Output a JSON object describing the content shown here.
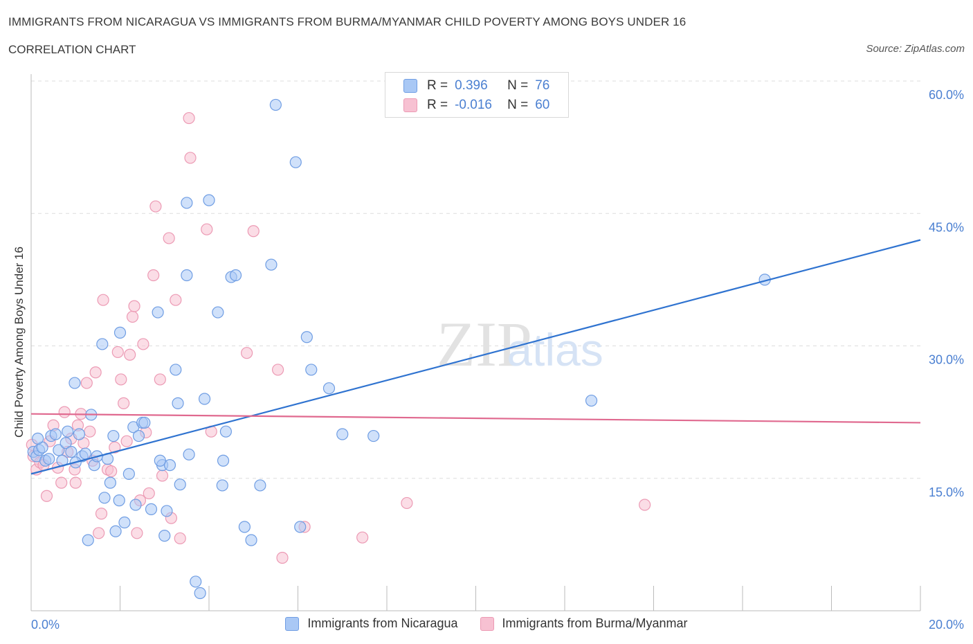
{
  "header": {
    "title": "IMMIGRANTS FROM NICARAGUA VS IMMIGRANTS FROM BURMA/MYANMAR CHILD POVERTY AMONG BOYS UNDER 16",
    "subtitle": "CORRELATION CHART",
    "source": "Source: ZipAtlas.com"
  },
  "watermark": {
    "zip": "ZIP",
    "atlas": "atlas"
  },
  "legend": {
    "r_label": "R =",
    "n_label": "N =",
    "rows": [
      {
        "r": "0.396",
        "n": "76"
      },
      {
        "r": "-0.016",
        "n": "60"
      }
    ]
  },
  "colors": {
    "blue_fill": "#a9c8f5",
    "blue_stroke": "#6f9de3",
    "blue_line": "#2f73d0",
    "pink_fill": "#f7c1d2",
    "pink_stroke": "#ec9ab4",
    "pink_line": "#e0698f",
    "axis_text": "#4a7fd1",
    "grid": "#dddddd"
  },
  "chart_data": {
    "type": "scatter",
    "title": "IMMIGRANTS FROM NICARAGUA VS IMMIGRANTS FROM BURMA/MYANMAR CHILD POVERTY AMONG BOYS UNDER 16",
    "ylabel": "Child Poverty Among Boys Under 16",
    "xlim": [
      0,
      20
    ],
    "ylim": [
      0,
      60
    ],
    "x_tick_labels": [
      "0.0%",
      "20.0%"
    ],
    "y_ticks": [
      15,
      30,
      45,
      60
    ],
    "y_tick_labels": [
      "15.0%",
      "30.0%",
      "45.0%",
      "60.0%"
    ],
    "grid": true,
    "legend_position": "bottom",
    "series": [
      {
        "name": "Immigrants from Nicaragua",
        "r": 0.396,
        "n": 76,
        "trend": {
          "x": [
            0,
            20
          ],
          "y": [
            15.5,
            42.0
          ]
        },
        "points": [
          [
            0.05,
            18.0
          ],
          [
            0.12,
            17.5
          ],
          [
            0.18,
            18.2
          ],
          [
            0.25,
            18.5
          ],
          [
            0.32,
            17.0
          ],
          [
            0.4,
            17.2
          ],
          [
            0.45,
            19.8
          ],
          [
            0.55,
            20.0
          ],
          [
            0.62,
            18.2
          ],
          [
            0.7,
            17.0
          ],
          [
            0.78,
            19.0
          ],
          [
            0.82,
            20.3
          ],
          [
            0.9,
            18.0
          ],
          [
            0.98,
            25.8
          ],
          [
            1.08,
            20.0
          ],
          [
            1.15,
            17.5
          ],
          [
            1.22,
            17.8
          ],
          [
            1.28,
            8.0
          ],
          [
            1.35,
            22.2
          ],
          [
            1.42,
            16.5
          ],
          [
            1.48,
            17.5
          ],
          [
            1.6,
            30.2
          ],
          [
            1.65,
            12.8
          ],
          [
            1.72,
            17.2
          ],
          [
            1.78,
            14.5
          ],
          [
            1.85,
            19.8
          ],
          [
            1.9,
            9.0
          ],
          [
            1.98,
            12.5
          ],
          [
            2.0,
            31.5
          ],
          [
            2.1,
            10.0
          ],
          [
            2.2,
            15.5
          ],
          [
            2.3,
            20.8
          ],
          [
            2.35,
            12.0
          ],
          [
            2.42,
            19.8
          ],
          [
            2.5,
            21.3
          ],
          [
            2.55,
            21.3
          ],
          [
            2.7,
            11.5
          ],
          [
            2.85,
            33.8
          ],
          [
            2.95,
            16.5
          ],
          [
            3.0,
            8.5
          ],
          [
            3.05,
            11.3
          ],
          [
            3.12,
            16.5
          ],
          [
            3.25,
            27.3
          ],
          [
            3.3,
            23.5
          ],
          [
            3.35,
            14.3
          ],
          [
            3.5,
            38.0
          ],
          [
            3.5,
            46.2
          ],
          [
            3.55,
            17.7
          ],
          [
            3.7,
            3.3
          ],
          [
            3.8,
            2.0
          ],
          [
            3.9,
            24.0
          ],
          [
            4.0,
            46.5
          ],
          [
            4.2,
            33.8
          ],
          [
            4.3,
            14.2
          ],
          [
            4.32,
            17.0
          ],
          [
            4.38,
            20.3
          ],
          [
            4.5,
            37.8
          ],
          [
            4.6,
            38.0
          ],
          [
            4.8,
            9.5
          ],
          [
            4.95,
            8.0
          ],
          [
            5.15,
            14.2
          ],
          [
            5.4,
            39.2
          ],
          [
            5.5,
            57.3
          ],
          [
            5.95,
            50.8
          ],
          [
            6.05,
            9.5
          ],
          [
            6.2,
            31.0
          ],
          [
            6.3,
            27.3
          ],
          [
            6.7,
            25.2
          ],
          [
            7.0,
            20.0
          ],
          [
            7.7,
            19.8
          ],
          [
            8.4,
            58.8
          ],
          [
            12.6,
            23.8
          ],
          [
            16.5,
            37.5
          ],
          [
            0.15,
            19.5
          ],
          [
            2.9,
            17.0
          ],
          [
            1.0,
            16.8
          ]
        ]
      },
      {
        "name": "Immigrants from Burma/Myanmar",
        "r": -0.016,
        "n": 60,
        "trend": {
          "x": [
            0,
            20
          ],
          "y": [
            22.3,
            21.3
          ]
        },
        "points": [
          [
            0.05,
            17.5
          ],
          [
            0.12,
            16.0
          ],
          [
            0.2,
            16.8
          ],
          [
            0.28,
            16.5
          ],
          [
            0.35,
            13.0
          ],
          [
            0.42,
            19.2
          ],
          [
            0.5,
            21.0
          ],
          [
            0.6,
            16.2
          ],
          [
            0.68,
            14.5
          ],
          [
            0.75,
            22.5
          ],
          [
            0.82,
            18.0
          ],
          [
            0.9,
            19.5
          ],
          [
            0.98,
            16.0
          ],
          [
            1.05,
            21.0
          ],
          [
            1.12,
            22.3
          ],
          [
            1.18,
            19.0
          ],
          [
            1.25,
            25.8
          ],
          [
            1.32,
            20.3
          ],
          [
            1.38,
            17.0
          ],
          [
            1.45,
            27.0
          ],
          [
            1.52,
            8.8
          ],
          [
            1.58,
            11.0
          ],
          [
            1.62,
            35.2
          ],
          [
            1.72,
            16.0
          ],
          [
            1.8,
            15.8
          ],
          [
            1.88,
            18.5
          ],
          [
            1.95,
            29.3
          ],
          [
            2.02,
            26.2
          ],
          [
            2.08,
            23.5
          ],
          [
            2.15,
            19.2
          ],
          [
            2.22,
            29.0
          ],
          [
            2.28,
            33.3
          ],
          [
            2.32,
            34.5
          ],
          [
            2.38,
            8.8
          ],
          [
            2.45,
            12.5
          ],
          [
            2.52,
            30.2
          ],
          [
            2.58,
            20.2
          ],
          [
            2.65,
            13.3
          ],
          [
            2.75,
            38.0
          ],
          [
            2.8,
            45.8
          ],
          [
            2.9,
            26.2
          ],
          [
            2.95,
            15.3
          ],
          [
            3.1,
            42.2
          ],
          [
            3.15,
            10.5
          ],
          [
            3.25,
            35.2
          ],
          [
            3.35,
            8.2
          ],
          [
            3.55,
            55.8
          ],
          [
            3.58,
            51.3
          ],
          [
            3.95,
            43.2
          ],
          [
            4.05,
            20.3
          ],
          [
            4.85,
            29.2
          ],
          [
            5.0,
            43.0
          ],
          [
            5.55,
            27.3
          ],
          [
            5.65,
            6.0
          ],
          [
            6.15,
            9.5
          ],
          [
            7.45,
            8.3
          ],
          [
            8.45,
            12.2
          ],
          [
            13.8,
            12.0
          ],
          [
            0.02,
            18.8
          ],
          [
            1.0,
            14.5
          ]
        ]
      }
    ]
  }
}
